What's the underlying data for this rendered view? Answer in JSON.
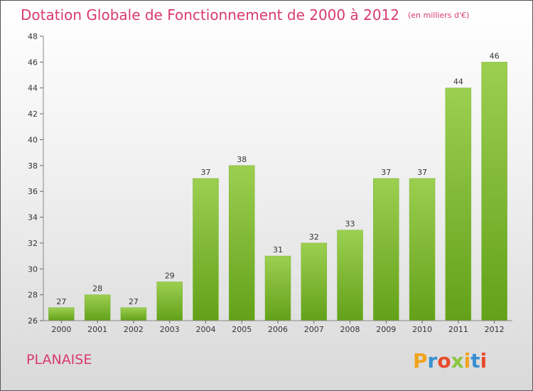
{
  "header": {
    "title": "Dotation Globale de Fonctionnement de 2000 à 2012",
    "unit": "(en milliers d'€)"
  },
  "footer": {
    "commune": "PLANAISE",
    "logo": "Proxiti"
  },
  "colors": {
    "bar_light": "#9ccf50",
    "bar_dark": "#63a11a",
    "title": "#d93a6b",
    "logo": [
      "#f2a31b",
      "#3a8fd0",
      "#e84a2c",
      "#8cc63f",
      "#f2a31b",
      "#3a8fd0",
      "#e84a2c"
    ]
  },
  "chart_data": {
    "type": "bar",
    "title": "Dotation Globale de Fonctionnement de 2000 à 2012",
    "subtitle": "(en milliers d'€)",
    "xlabel": "",
    "ylabel": "",
    "categories": [
      "2000",
      "2001",
      "2002",
      "2003",
      "2004",
      "2005",
      "2006",
      "2007",
      "2008",
      "2009",
      "2010",
      "2011",
      "2012"
    ],
    "values": [
      27,
      28,
      27,
      29,
      37,
      38,
      31,
      32,
      33,
      37,
      37,
      44,
      46
    ],
    "ylim": [
      26,
      48
    ],
    "yticks": [
      26,
      28,
      30,
      32,
      34,
      36,
      38,
      40,
      42,
      44,
      46,
      48
    ],
    "grid": false,
    "legend": "none"
  }
}
